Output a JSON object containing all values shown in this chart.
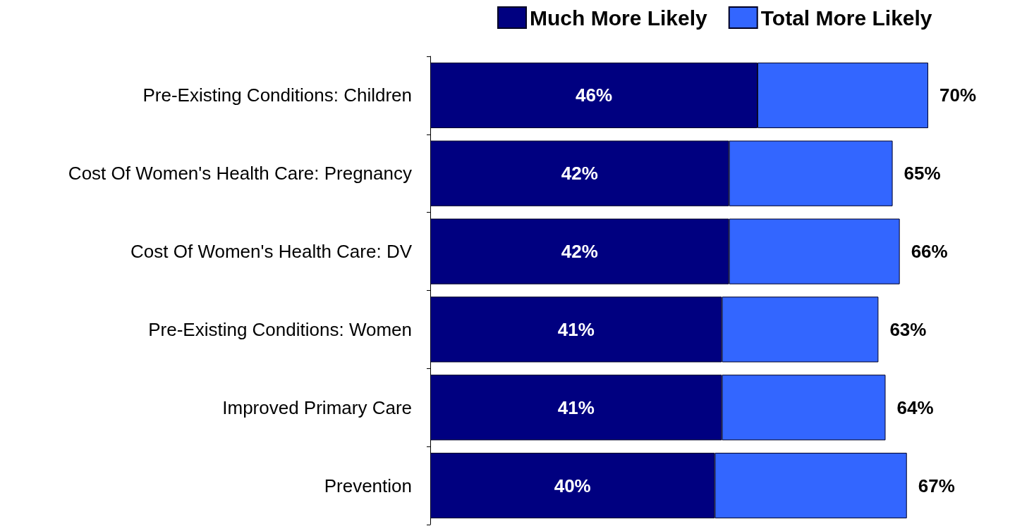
{
  "chart_data": {
    "type": "bar",
    "orientation": "horizontal",
    "stacked": true,
    "categories": [
      "Pre-Existing Conditions: Children",
      "Cost Of Women's Health Care: Pregnancy",
      "Cost Of Women's Health Care: DV",
      "Pre-Existing Conditions: Women",
      "Improved Primary Care",
      "Prevention"
    ],
    "series": [
      {
        "name": "Much More Likely",
        "color": "#000080",
        "values": [
          46,
          42,
          42,
          41,
          41,
          40
        ],
        "value_labels": [
          "46%",
          "42%",
          "42%",
          "41%",
          "41%",
          "40%"
        ]
      },
      {
        "name": "Total More Likely",
        "color": "#3366ff",
        "values": [
          24,
          23,
          24,
          22,
          23,
          27
        ]
      }
    ],
    "totals": [
      "70%",
      "65%",
      "66%",
      "63%",
      "64%",
      "67%"
    ],
    "legend": "top"
  }
}
